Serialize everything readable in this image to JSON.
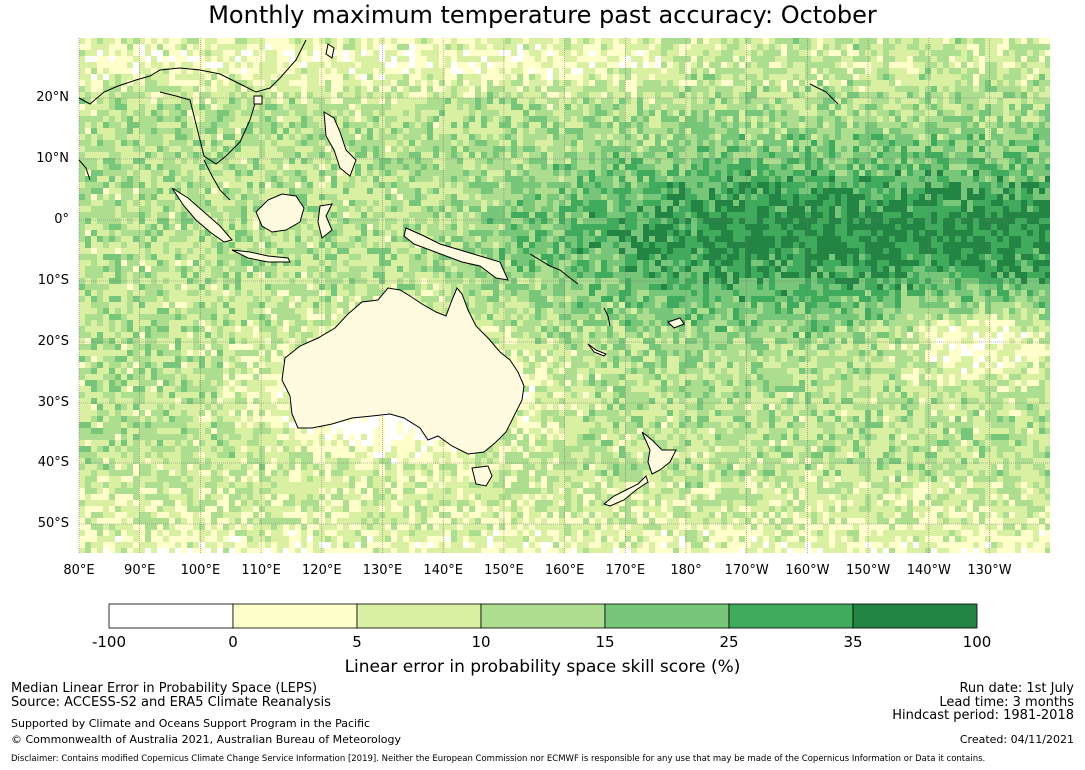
{
  "title": "Monthly maximum temperature past accuracy: October",
  "map": {
    "lat_labels": [
      "20°N",
      "10°N",
      "0°",
      "10°S",
      "20°S",
      "30°S",
      "40°S",
      "50°S"
    ],
    "lon_labels": [
      "80°E",
      "90°E",
      "100°E",
      "110°E",
      "120°E",
      "130°E",
      "140°E",
      "150°E",
      "160°E",
      "170°E",
      "180°",
      "170°W",
      "160°W",
      "150°W",
      "140°W",
      "130°W"
    ],
    "lon_range": [
      80,
      240
    ],
    "lat_range": [
      -55.5,
      30
    ]
  },
  "colorbar": {
    "label": "Linear error in probability space skill score (%)",
    "ticks": [
      "-100",
      "0",
      "5",
      "10",
      "15",
      "25",
      "35",
      "100"
    ],
    "colors": [
      "#ffffff",
      "#ffffcc",
      "#d9f0a3",
      "#addd8e",
      "#78c679",
      "#41ab5d",
      "#238443"
    ]
  },
  "footer": {
    "left_line1": "Median Linear Error in Probability Space (LEPS)",
    "left_line2": "Source: ACCESS-S2 and ERA5 Climate Reanalysis",
    "left_line3": "Supported by Climate and Oceans Support Program in the Pacific",
    "left_line4": "© Commonwealth of Australia 2021, Australian Bureau of Meteorology",
    "right_line1": "Run date: 1st July",
    "right_line2": "Lead time: 3 months",
    "right_line3": "Hindcast period: 1981-2018",
    "right_line4": "Created: 04/11/2021",
    "disclaimer": "Disclaimer: Contains modified Copernicus Climate Change Service Information [2019]. Neither the European Commission nor ECMWF is responsible for any use that may be made of the Copernicus Information or Data it contains."
  }
}
